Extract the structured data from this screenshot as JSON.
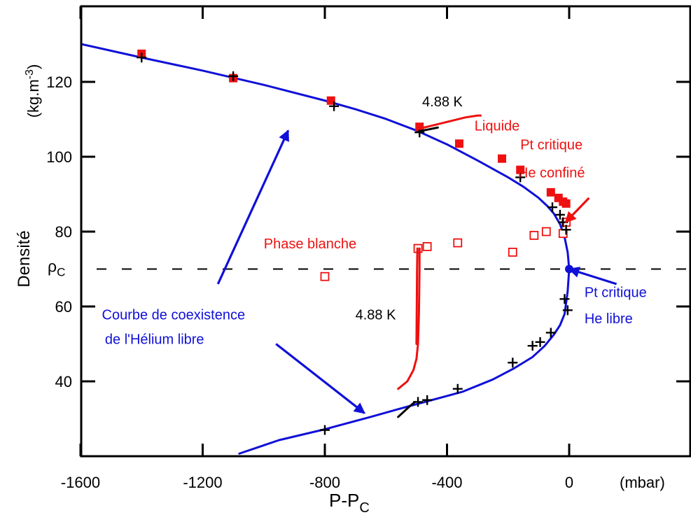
{
  "chart_data": {
    "type": "scatter",
    "xlabel": "P-P",
    "xlabel_sub": "C",
    "xunit": "(mbar)",
    "ylabel": "Densité",
    "yunit_main": "(kg.m",
    "yunit_exp": "-3",
    "yunit_close": ")",
    "xlim": [
      -1600,
      0
    ],
    "ylim": [
      20,
      140
    ],
    "xticks": [
      -1600,
      -1200,
      -800,
      -400,
      0
    ],
    "xtick_labels": [
      "-1600",
      "-1200",
      "-800",
      "-400",
      "0"
    ],
    "yticks": [
      40,
      60,
      80,
      100,
      120
    ],
    "ytick_labels": [
      "40",
      "60",
      "80",
      "100",
      "120"
    ],
    "rho_c_value": 70,
    "rho_c_symbol": "ρ",
    "rho_c_sub": "C",
    "grid": false,
    "colors": {
      "free": "#1010d8",
      "confined": "#ee1010",
      "black": "#000000"
    },
    "series": [
      {
        "kind": "curve",
        "color": "#1010d8",
        "x": [
          -1620,
          -1400,
          -1200,
          -1000,
          -800,
          -700,
          -600,
          -500,
          -400,
          -300,
          -200,
          -150,
          -100,
          -70,
          -50,
          -30,
          -15,
          -5,
          0,
          -5,
          -15,
          -30,
          -50,
          -80,
          -120,
          -180,
          -250,
          -350,
          -450,
          -550,
          -650,
          -800,
          -950,
          -1080
        ],
        "y": [
          130.5,
          126.5,
          123,
          119.2,
          115,
          112.7,
          110.1,
          107,
          103.3,
          99,
          94.5,
          92,
          89,
          86.7,
          84.8,
          82,
          78.5,
          74.5,
          70,
          64,
          58,
          55,
          52.5,
          49.5,
          46.5,
          43.5,
          40.5,
          37.2,
          35,
          32.8,
          30.5,
          27.2,
          24.3,
          20.7
        ]
      },
      {
        "kind": "markers",
        "marker": "filled-square",
        "color": "#ee1010",
        "x": [
          -1400,
          -1100,
          -780,
          -490,
          -360,
          -220,
          -160,
          -60,
          -35,
          -20,
          -10
        ],
        "y": [
          127.5,
          121,
          115,
          108,
          103.5,
          99.5,
          96.5,
          90.5,
          89,
          88,
          87.5
        ]
      },
      {
        "kind": "markers",
        "marker": "open-square",
        "color": "#ee1010",
        "x": [
          -800,
          -495,
          -465,
          -365,
          -185,
          -115,
          -75,
          -20,
          -10
        ],
        "y": [
          68,
          75.5,
          76,
          77,
          74.5,
          79,
          80,
          79.5,
          82.5
        ]
      },
      {
        "kind": "markers",
        "marker": "plus",
        "color": "#000000",
        "x": [
          -1400,
          -1100,
          -770,
          -490,
          -160,
          -55,
          -30,
          -20,
          -10,
          -15,
          -5,
          -60,
          -95,
          -120,
          -185,
          -365,
          -465,
          -495,
          -800
        ],
        "y": [
          126.5,
          121.5,
          113.5,
          106.5,
          94.5,
          86.5,
          84.5,
          82.5,
          80.5,
          62,
          59,
          53,
          50.5,
          49.5,
          45,
          38,
          35,
          34.5,
          27
        ]
      },
      {
        "kind": "curve",
        "color": "#ee1010",
        "x": [
          -490,
          -440,
          -390,
          -340,
          -300,
          -290
        ],
        "y": [
          107.5,
          108.5,
          109.5,
          110.5,
          111,
          111
        ]
      },
      {
        "kind": "curve",
        "color": "#000000",
        "x": [
          -492,
          -460,
          -430
        ],
        "y": [
          106.8,
          107.3,
          107.8
        ]
      },
      {
        "kind": "curve",
        "color": "#ee1010",
        "x": [
          -560,
          -530,
          -510,
          -500,
          -495,
          -492,
          -490,
          -490
        ],
        "y": [
          38,
          40,
          43,
          46,
          50,
          58,
          70,
          75.5
        ]
      },
      {
        "kind": "curve",
        "color": "#ee1010",
        "x": [
          -500,
          -499,
          -498,
          -497
        ],
        "y": [
          50,
          60,
          70,
          75.5
        ]
      },
      {
        "kind": "curve",
        "color": "#000000",
        "x": [
          -560,
          -540,
          -520,
          -505
        ],
        "y": [
          30.5,
          32,
          33.5,
          34.5
        ]
      },
      {
        "kind": "point",
        "color": "#1010d8",
        "x": [
          0
        ],
        "y": [
          70
        ]
      }
    ],
    "annotations": [
      {
        "text": "4.88 K",
        "color": "#000000",
        "x": -415,
        "y": 113.5,
        "anchor": "middle"
      },
      {
        "text": "Liquide",
        "color": "#ee1010",
        "x": -310,
        "y": 107,
        "anchor": "start"
      },
      {
        "text": "Pt critique",
        "color": "#ee1010",
        "x": -58,
        "y": 102,
        "anchor": "middle"
      },
      {
        "text": "He confiné",
        "color": "#ee1010",
        "x": -58,
        "y": 94.5,
        "anchor": "middle"
      },
      {
        "text": "Phase blanche",
        "color": "#ee1010",
        "x": -1000,
        "y": 75.5,
        "anchor": "start"
      },
      {
        "text": "4.88 K",
        "color": "#000000",
        "x": -700,
        "y": 56.5,
        "anchor": "start"
      },
      {
        "text": "Pt critique",
        "color": "#1010d8",
        "x": 50,
        "y": 62.5,
        "anchor": "start"
      },
      {
        "text": "He libre",
        "color": "#1010d8",
        "x": 50,
        "y": 55.5,
        "anchor": "start"
      },
      {
        "text": "Courbe de coexistence",
        "color": "#1010d8",
        "x": -1530,
        "y": 56.5,
        "anchor": "start"
      },
      {
        "text": "de l'Hélium libre",
        "color": "#1010d8",
        "x": -1520,
        "y": 50,
        "anchor": "start"
      }
    ],
    "arrows": [
      {
        "color": "#1010d8",
        "from": [
          -1150,
          66
        ],
        "to": [
          -920,
          107
        ]
      },
      {
        "color": "#1010d8",
        "from": [
          -960,
          50
        ],
        "to": [
          -670,
          31.5
        ]
      },
      {
        "color": "#ee1010",
        "from": [
          65,
          89
        ],
        "to": [
          -12,
          82.5
        ]
      },
      {
        "color": "#1010d8",
        "from": [
          155,
          66
        ],
        "to": [
          0,
          70
        ]
      }
    ]
  }
}
